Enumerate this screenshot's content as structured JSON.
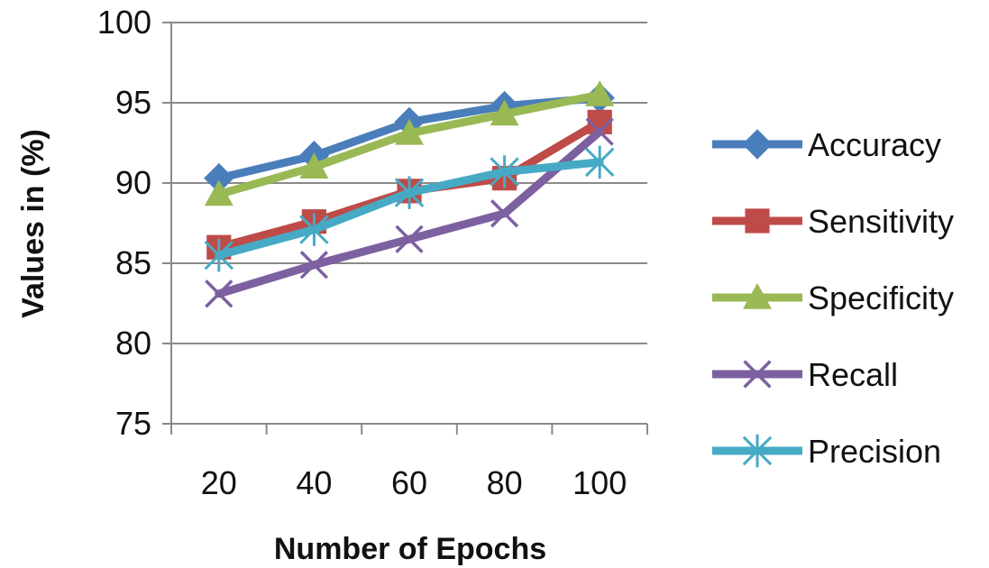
{
  "chart_data": {
    "type": "line",
    "categories": [
      "20",
      "40",
      "60",
      "80",
      "100"
    ],
    "xlabel": "Number of Epochs",
    "ylabel": "Values in (%)",
    "ylim": [
      75,
      100
    ],
    "yticks": [
      "75",
      "80",
      "85",
      "90",
      "95",
      "100"
    ],
    "grid": "horizontal",
    "legend_position": "right",
    "series": [
      {
        "name": "Accuracy",
        "values": [
          90.3,
          91.7,
          93.8,
          94.8,
          95.3
        ],
        "color": "#4a7ebb",
        "marker": "diamond"
      },
      {
        "name": "Sensitivity",
        "values": [
          86.0,
          87.6,
          89.5,
          90.3,
          93.8
        ],
        "color": "#be4b48",
        "marker": "square"
      },
      {
        "name": "Specificity",
        "values": [
          89.3,
          91.0,
          93.1,
          94.3,
          95.5
        ],
        "color": "#98b954",
        "marker": "triangle"
      },
      {
        "name": "Recall",
        "values": [
          83.1,
          84.9,
          86.5,
          88.1,
          93.2
        ],
        "color": "#7d60a0",
        "marker": "x"
      },
      {
        "name": "Precision",
        "values": [
          85.5,
          87.1,
          89.4,
          90.7,
          91.3
        ],
        "color": "#46aac5",
        "marker": "asterisk"
      }
    ]
  }
}
